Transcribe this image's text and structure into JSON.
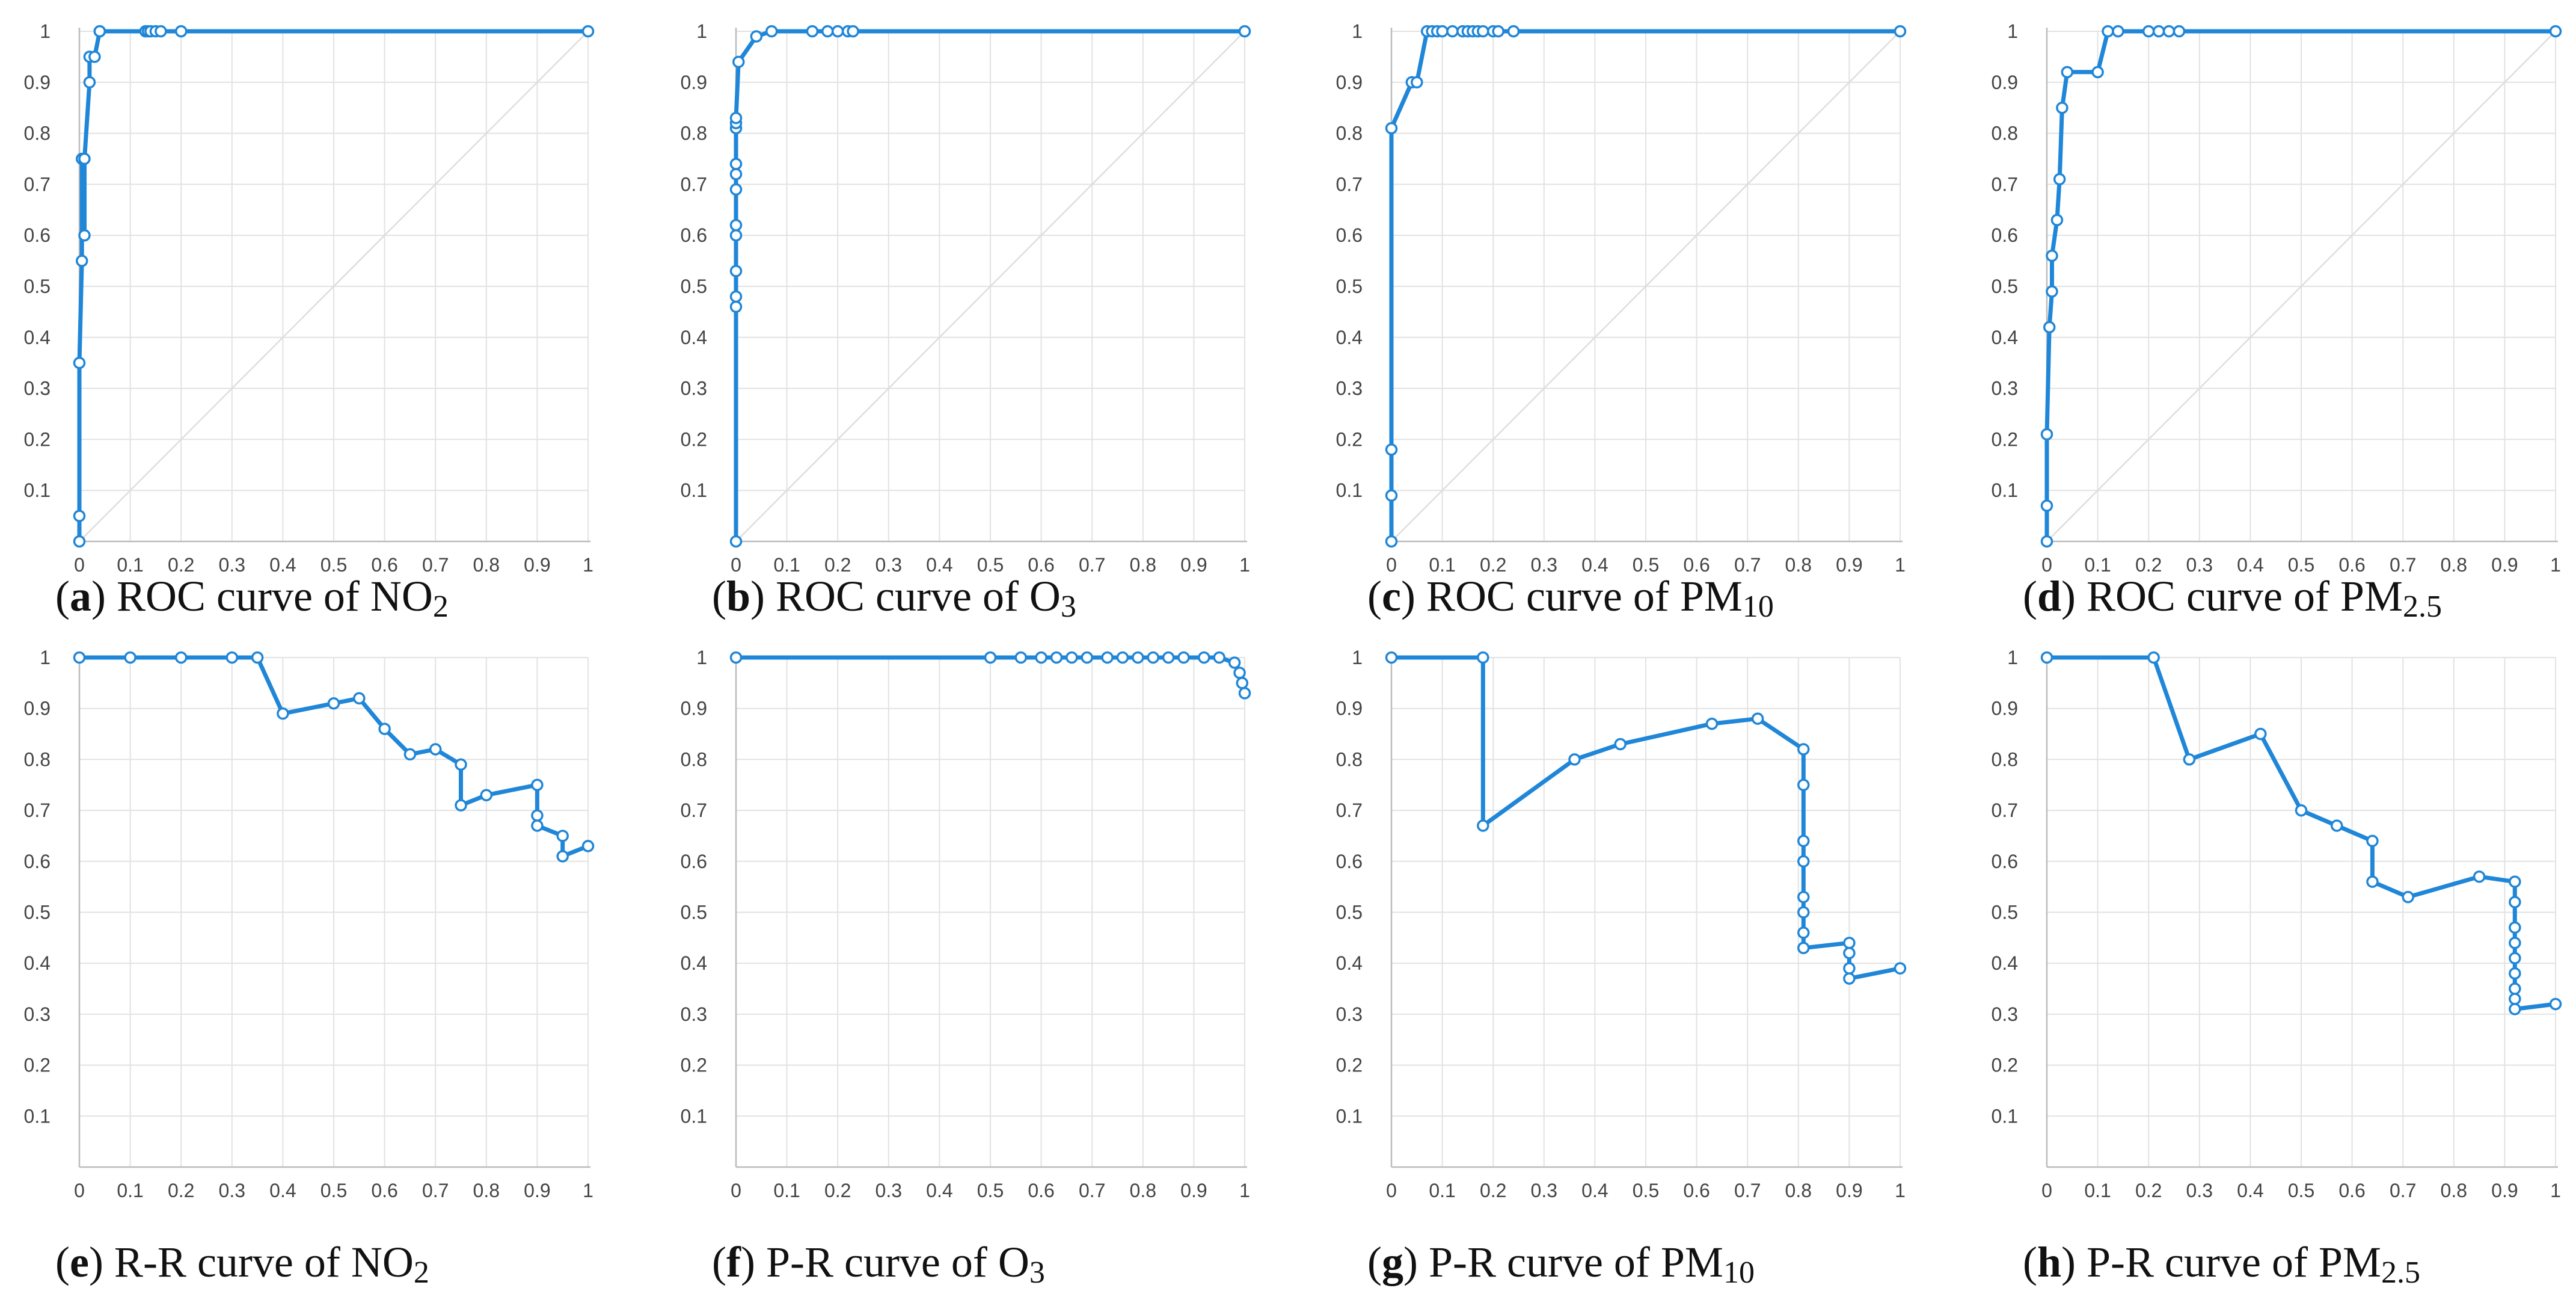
{
  "colors": {
    "series": "#1f86d8",
    "grid": "#e2e2e2",
    "axis": "#bcbcbc",
    "diagonal": "#dedede"
  },
  "chart_data": [
    {
      "type": "line",
      "label": "a",
      "caption": "ROC curve of NO",
      "caption_sub": "2",
      "show_diagonal": true,
      "xlim": [
        0,
        1
      ],
      "ylim": [
        0,
        1
      ],
      "xticks": [
        "0",
        "0.1",
        "0.2",
        "0.3",
        "0.4",
        "0.5",
        "0.6",
        "0.7",
        "0.8",
        "0.9",
        "1"
      ],
      "yticks": [
        "0.1",
        "0.2",
        "0.3",
        "0.4",
        "0.5",
        "0.6",
        "0.7",
        "0.8",
        "0.9",
        "1"
      ],
      "x": [
        0,
        0,
        0,
        0.005,
        0.005,
        0.01,
        0.01,
        0.02,
        0.02,
        0.03,
        0.04,
        0.04,
        0.13,
        0.135,
        0.14,
        0.15,
        0.16,
        0.2,
        1
      ],
      "y": [
        0,
        0.05,
        0.35,
        0.55,
        0.75,
        0.6,
        0.75,
        0.9,
        0.95,
        0.95,
        1,
        1,
        1,
        1,
        1,
        1,
        1,
        1,
        1
      ]
    },
    {
      "type": "line",
      "label": "b",
      "caption": "ROC curve of O",
      "caption_sub": "3",
      "show_diagonal": true,
      "xlim": [
        0,
        1
      ],
      "ylim": [
        0,
        1
      ],
      "xticks": [
        "0",
        "0.1",
        "0.2",
        "0.3",
        "0.4",
        "0.5",
        "0.6",
        "0.7",
        "0.8",
        "0.9",
        "1"
      ],
      "yticks": [
        "0.1",
        "0.2",
        "0.3",
        "0.4",
        "0.5",
        "0.6",
        "0.7",
        "0.8",
        "0.9",
        "1"
      ],
      "x": [
        0,
        0,
        0,
        0,
        0,
        0,
        0,
        0,
        0,
        0,
        0,
        0,
        0.005,
        0.04,
        0.07,
        0.15,
        0.18,
        0.2,
        0.22,
        0.23,
        1
      ],
      "y": [
        0,
        0.46,
        0.48,
        0.53,
        0.6,
        0.62,
        0.69,
        0.72,
        0.74,
        0.81,
        0.82,
        0.83,
        0.94,
        0.99,
        1,
        1,
        1,
        1,
        1,
        1,
        1
      ]
    },
    {
      "type": "line",
      "label": "c",
      "caption": "ROC curve of PM",
      "caption_sub": "10",
      "show_diagonal": true,
      "xlim": [
        0,
        1
      ],
      "ylim": [
        0,
        1
      ],
      "xticks": [
        "0",
        "0.1",
        "0.2",
        "0.3",
        "0.4",
        "0.5",
        "0.6",
        "0.7",
        "0.8",
        "0.9",
        "1"
      ],
      "yticks": [
        "0.1",
        "0.2",
        "0.3",
        "0.4",
        "0.5",
        "0.6",
        "0.7",
        "0.8",
        "0.9",
        "1"
      ],
      "x": [
        0,
        0,
        0,
        0,
        0.04,
        0.05,
        0.07,
        0.08,
        0.09,
        0.1,
        0.12,
        0.14,
        0.15,
        0.16,
        0.17,
        0.18,
        0.2,
        0.21,
        0.24,
        1
      ],
      "y": [
        0,
        0.09,
        0.18,
        0.81,
        0.9,
        0.9,
        1,
        1,
        1,
        1,
        1,
        1,
        1,
        1,
        1,
        1,
        1,
        1,
        1,
        1
      ]
    },
    {
      "type": "line",
      "label": "d",
      "caption": "ROC curve of PM",
      "caption_sub": "2.5",
      "show_diagonal": true,
      "xlim": [
        0,
        1
      ],
      "ylim": [
        0,
        1
      ],
      "xticks": [
        "0",
        "0.1",
        "0.2",
        "0.3",
        "0.4",
        "0.5",
        "0.6",
        "0.7",
        "0.8",
        "0.9",
        "1"
      ],
      "yticks": [
        "0.1",
        "0.2",
        "0.3",
        "0.4",
        "0.5",
        "0.6",
        "0.7",
        "0.8",
        "0.9",
        "1"
      ],
      "x": [
        0,
        0,
        0,
        0.005,
        0.01,
        0.01,
        0.02,
        0.025,
        0.03,
        0.04,
        0.1,
        0.12,
        0.14,
        0.2,
        0.22,
        0.24,
        0.26,
        1
      ],
      "y": [
        0,
        0.07,
        0.21,
        0.42,
        0.49,
        0.56,
        0.63,
        0.71,
        0.85,
        0.92,
        0.92,
        1,
        1,
        1,
        1,
        1,
        1,
        1
      ]
    },
    {
      "type": "line",
      "label": "e",
      "caption": "R-R curve of NO",
      "caption_sub": "2",
      "show_diagonal": false,
      "xlim": [
        0,
        1
      ],
      "ylim": [
        0,
        1
      ],
      "xticks": [
        "0",
        "0.1",
        "0.2",
        "0.3",
        "0.4",
        "0.5",
        "0.6",
        "0.7",
        "0.8",
        "0.9",
        "1"
      ],
      "yticks": [
        "0.1",
        "0.2",
        "0.3",
        "0.4",
        "0.5",
        "0.6",
        "0.7",
        "0.8",
        "0.9",
        "1"
      ],
      "x": [
        0,
        0.1,
        0.2,
        0.3,
        0.35,
        0.4,
        0.5,
        0.55,
        0.6,
        0.65,
        0.7,
        0.75,
        0.75,
        0.8,
        0.9,
        0.9,
        0.9,
        0.95,
        0.95,
        1
      ],
      "y": [
        1,
        1,
        1,
        1,
        1,
        0.89,
        0.91,
        0.92,
        0.86,
        0.81,
        0.82,
        0.79,
        0.71,
        0.73,
        0.75,
        0.69,
        0.67,
        0.65,
        0.61,
        0.63
      ]
    },
    {
      "type": "line",
      "label": "f",
      "caption": "P-R curve of O",
      "caption_sub": "3",
      "show_diagonal": false,
      "xlim": [
        0,
        1
      ],
      "ylim": [
        0,
        1
      ],
      "xticks": [
        "0",
        "0.1",
        "0.2",
        "0.3",
        "0.4",
        "0.5",
        "0.6",
        "0.7",
        "0.8",
        "0.9",
        "1"
      ],
      "yticks": [
        "0.1",
        "0.2",
        "0.3",
        "0.4",
        "0.5",
        "0.6",
        "0.7",
        "0.8",
        "0.9",
        "1"
      ],
      "x": [
        0,
        0.5,
        0.56,
        0.6,
        0.63,
        0.66,
        0.69,
        0.73,
        0.76,
        0.79,
        0.82,
        0.85,
        0.88,
        0.92,
        0.95,
        0.98,
        0.99,
        0.995,
        1
      ],
      "y": [
        1,
        1,
        1,
        1,
        1,
        1,
        1,
        1,
        1,
        1,
        1,
        1,
        1,
        1,
        1,
        0.99,
        0.97,
        0.95,
        0.93
      ]
    },
    {
      "type": "line",
      "label": "g",
      "caption": "P-R curve of PM",
      "caption_sub": "10",
      "show_diagonal": false,
      "xlim": [
        0,
        1
      ],
      "ylim": [
        0,
        1
      ],
      "xticks": [
        "0",
        "0.1",
        "0.2",
        "0.3",
        "0.4",
        "0.5",
        "0.6",
        "0.7",
        "0.8",
        "0.9",
        "1"
      ],
      "yticks": [
        "0.1",
        "0.2",
        "0.3",
        "0.4",
        "0.5",
        "0.6",
        "0.7",
        "0.8",
        "0.9",
        "1"
      ],
      "x": [
        0,
        0.18,
        0.18,
        0.36,
        0.45,
        0.63,
        0.72,
        0.81,
        0.81,
        0.81,
        0.81,
        0.81,
        0.81,
        0.81,
        0.81,
        0.81,
        0.9,
        0.9,
        0.9,
        0.9,
        1
      ],
      "y": [
        1,
        1,
        0.67,
        0.8,
        0.83,
        0.87,
        0.88,
        0.82,
        0.75,
        0.64,
        0.6,
        0.53,
        0.5,
        0.46,
        0.43,
        0.43,
        0.44,
        0.42,
        0.39,
        0.37,
        0.39
      ]
    },
    {
      "type": "line",
      "label": "h",
      "caption": "P-R curve of PM",
      "caption_sub": "2.5",
      "show_diagonal": false,
      "xlim": [
        0,
        1
      ],
      "ylim": [
        0,
        1
      ],
      "xticks": [
        "0",
        "0.1",
        "0.2",
        "0.3",
        "0.4",
        "0.5",
        "0.6",
        "0.7",
        "0.8",
        "0.9",
        "1"
      ],
      "yticks": [
        "0.1",
        "0.2",
        "0.3",
        "0.4",
        "0.5",
        "0.6",
        "0.7",
        "0.8",
        "0.9",
        "1"
      ],
      "x": [
        0,
        0.21,
        0.28,
        0.42,
        0.5,
        0.57,
        0.64,
        0.64,
        0.71,
        0.85,
        0.92,
        0.92,
        0.92,
        0.92,
        0.92,
        0.92,
        0.92,
        0.92,
        0.92,
        1
      ],
      "y": [
        1,
        1,
        0.8,
        0.85,
        0.7,
        0.67,
        0.64,
        0.56,
        0.53,
        0.57,
        0.56,
        0.52,
        0.47,
        0.44,
        0.41,
        0.38,
        0.35,
        0.33,
        0.31,
        0.32
      ]
    }
  ]
}
